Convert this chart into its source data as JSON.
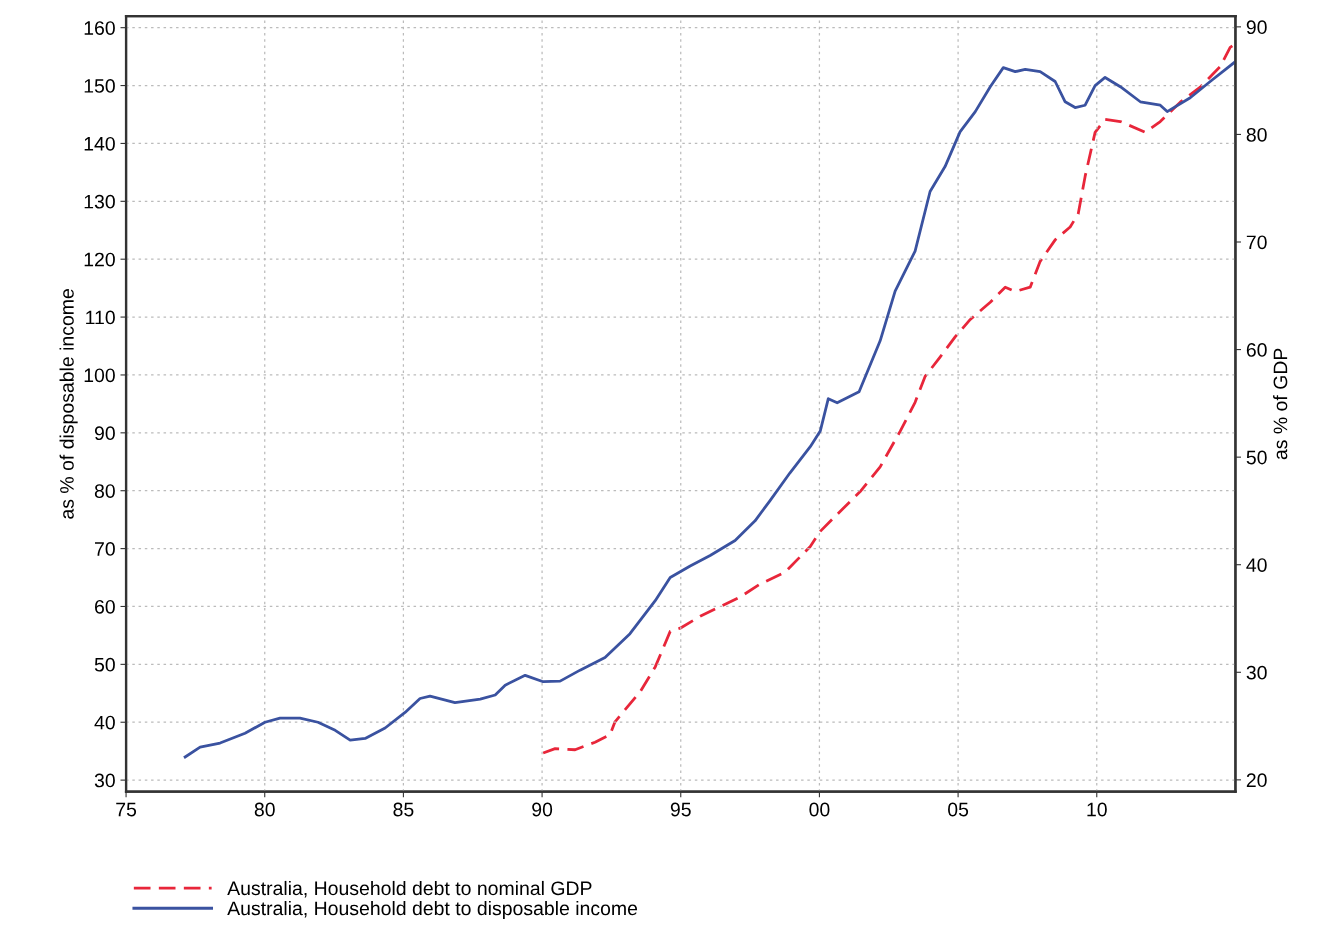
{
  "chart_data": {
    "type": "line",
    "ylabel": "as % of disposable income",
    "y2label": "as % of GDP",
    "xlim": [
      1975,
      2015
    ],
    "xticks": [
      {
        "value": 1975,
        "label": "75"
      },
      {
        "value": 1980,
        "label": "80"
      },
      {
        "value": 1985,
        "label": "85"
      },
      {
        "value": 1990,
        "label": "90"
      },
      {
        "value": 1995,
        "label": "95"
      },
      {
        "value": 2000,
        "label": "00"
      },
      {
        "value": 2005,
        "label": "05"
      },
      {
        "value": 2010,
        "label": "10"
      }
    ],
    "ylim": [
      28,
      162
    ],
    "yticks": [
      30,
      40,
      50,
      60,
      70,
      80,
      90,
      100,
      110,
      120,
      130,
      140,
      150,
      160
    ],
    "y2lim": [
      18.9,
      91
    ],
    "y2ticks": [
      20,
      30,
      40,
      50,
      60,
      70,
      80,
      90
    ],
    "grid": true,
    "legend": "bottom",
    "series": [
      {
        "name": "Australia, Household debt to nominal GDP",
        "color": "#e8263a",
        "axis": "y2",
        "line_style": "dashed",
        "x": [
          1990.04,
          1990.47,
          1991.19,
          1991.91,
          1992.45,
          1992.63,
          1993.54,
          1994.08,
          1994.62,
          1994.98,
          1995.7,
          1996.42,
          1997.14,
          1997.86,
          1998.76,
          1999.67,
          2000.03,
          2000.57,
          2001.47,
          2002.19,
          2002.91,
          2003.45,
          2003.81,
          2004.35,
          2004.9,
          2005.44,
          2006.16,
          2006.7,
          2007.06,
          2007.6,
          2007.96,
          2008.5,
          2009.04,
          2009.33,
          2009.58,
          2009.94,
          2010.3,
          2010.85,
          2011.75,
          2012.29,
          2013.01,
          2013.73,
          2014.45,
          2014.81,
          2014.99
        ],
        "values": [
          22.5,
          22.9,
          22.8,
          23.5,
          24.2,
          25.4,
          28.2,
          30.5,
          33.8,
          34.1,
          35.2,
          36.1,
          37.0,
          38.2,
          39.3,
          41.7,
          43.1,
          44.5,
          46.8,
          49.1,
          52.4,
          55.1,
          57.5,
          59.3,
          61.2,
          62.8,
          64.4,
          65.8,
          65.4,
          65.8,
          68.2,
          70.2,
          71.4,
          72.6,
          76.1,
          80.2,
          81.4,
          81.2,
          80.2,
          81.2,
          83.0,
          84.4,
          86.3,
          88.1,
          88.4
        ]
      },
      {
        "name": "Australia, Household debt to disposable income",
        "color": "#3a52a0",
        "line_style": "solid",
        "x": [
          1977.13,
          1977.67,
          1978.39,
          1979.29,
          1980.01,
          1980.55,
          1981.27,
          1981.92,
          1982.54,
          1983.08,
          1983.62,
          1984.34,
          1985.06,
          1985.6,
          1985.96,
          1986.86,
          1987.77,
          1988.31,
          1988.67,
          1989.39,
          1990.04,
          1990.65,
          1991.37,
          1992.27,
          1993.17,
          1994.08,
          1994.62,
          1995.34,
          1996.06,
          1996.96,
          1997.68,
          1998.22,
          1998.94,
          1999.67,
          2000.03,
          2000.32,
          2000.64,
          2001.43,
          2002.19,
          2002.73,
          2003.45,
          2003.99,
          2004.53,
          2005.07,
          2005.62,
          2006.16,
          2006.63,
          2007.06,
          2007.42,
          2007.96,
          2008.5,
          2008.86,
          2009.22,
          2009.58,
          2009.94,
          2010.3,
          2010.85,
          2011.57,
          2012.29,
          2012.54,
          2013.37,
          2014.09,
          2014.99
        ],
        "values": [
          34.0,
          35.7,
          36.4,
          38.1,
          40.0,
          40.7,
          40.7,
          40.0,
          38.6,
          36.9,
          37.2,
          39.0,
          41.7,
          44.1,
          44.5,
          43.4,
          44.0,
          44.7,
          46.4,
          48.1,
          47.0,
          47.1,
          49.0,
          51.2,
          55.3,
          61.0,
          65.0,
          67.0,
          68.8,
          71.4,
          74.8,
          78.3,
          83.1,
          87.6,
          90.3,
          95.9,
          95.2,
          97.1,
          105.9,
          114.5,
          121.4,
          131.7,
          136.0,
          142.0,
          145.5,
          149.8,
          153.1,
          152.4,
          152.8,
          152.4,
          150.7,
          147.2,
          146.2,
          146.6,
          150.0,
          151.4,
          149.8,
          147.2,
          146.6,
          145.5,
          147.9,
          150.7,
          154.1
        ]
      }
    ]
  }
}
